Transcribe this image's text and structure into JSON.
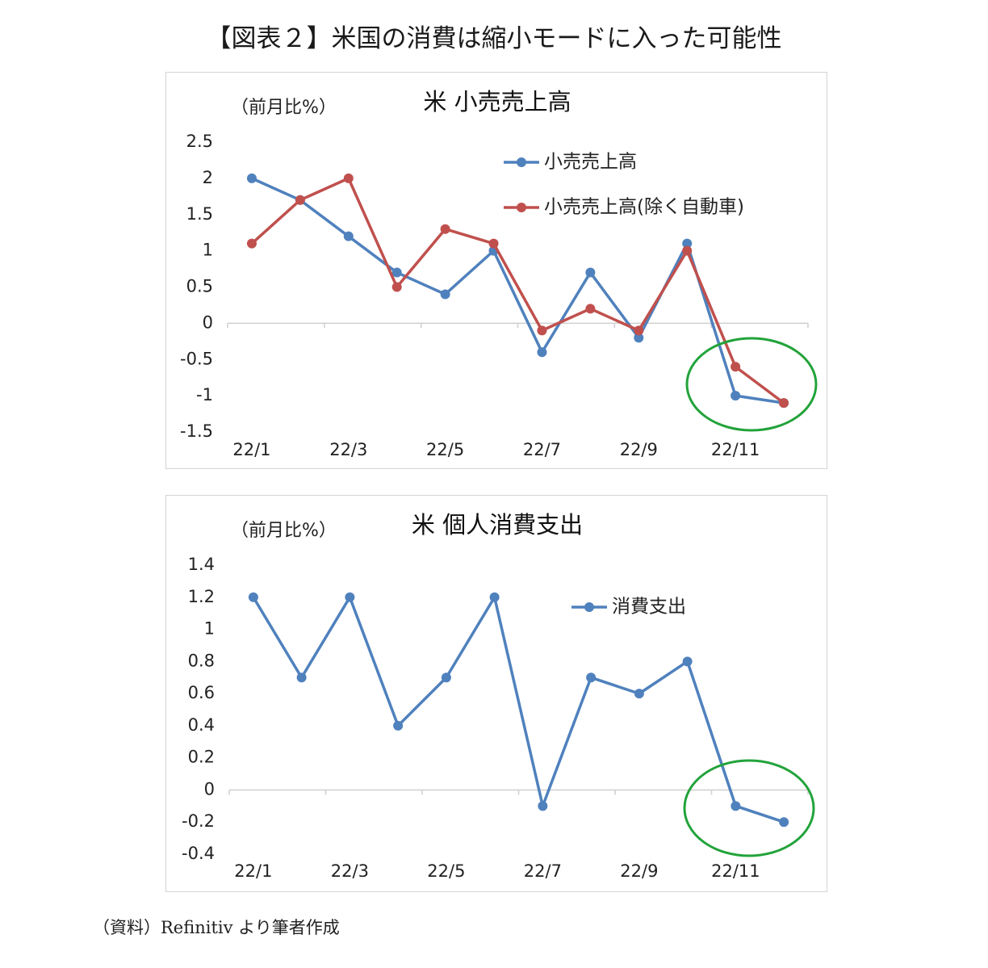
{
  "figure_title": "【図表２】米国の消費は縮小モードに入った可能性",
  "source": "（資料）Refinitiv より筆者作成",
  "chart_data": [
    {
      "type": "line",
      "title": "米 小売売上高",
      "ylabel": "（前月比%）",
      "xlabel": "",
      "categories": [
        "22/1",
        "22/2",
        "22/3",
        "22/4",
        "22/5",
        "22/6",
        "22/7",
        "22/8",
        "22/9",
        "22/10",
        "22/11",
        "22/12"
      ],
      "x_tick_labels": [
        "22/1",
        "22/3",
        "22/5",
        "22/7",
        "22/9",
        "22/11"
      ],
      "y_tick_labels": [
        "2.5",
        "2",
        "1.5",
        "1",
        "0.5",
        "0",
        "-0.5",
        "-1",
        "-1.5"
      ],
      "ylim": [
        -1.5,
        2.5
      ],
      "grid": false,
      "legend_position": "top-right",
      "series": [
        {
          "name": "小売売上高",
          "color": "#4f81bd",
          "values": [
            2.0,
            1.7,
            1.2,
            0.7,
            0.4,
            1.0,
            -0.4,
            0.7,
            -0.2,
            1.1,
            -1.0,
            -1.1
          ]
        },
        {
          "name": "小売売上高(除く自動車)",
          "color": "#c0504d",
          "values": [
            1.1,
            1.7,
            2.0,
            0.5,
            1.3,
            1.1,
            -0.1,
            0.2,
            -0.1,
            1.0,
            -0.6,
            -1.1
          ]
        }
      ],
      "annotation": {
        "shape": "ellipse",
        "color": "#22a33a",
        "x_range": [
          "22/11",
          "22/12"
        ]
      }
    },
    {
      "type": "line",
      "title": "米 個人消費支出",
      "ylabel": "（前月比%）",
      "xlabel": "",
      "categories": [
        "22/1",
        "22/2",
        "22/3",
        "22/4",
        "22/5",
        "22/6",
        "22/7",
        "22/8",
        "22/9",
        "22/10",
        "22/11",
        "22/12"
      ],
      "x_tick_labels": [
        "22/1",
        "22/3",
        "22/5",
        "22/7",
        "22/9",
        "22/11"
      ],
      "y_tick_labels": [
        "1.4",
        "1.2",
        "1",
        "0.8",
        "0.6",
        "0.4",
        "0.2",
        "0",
        "-0.2",
        "-0.4"
      ],
      "ylim": [
        -0.4,
        1.4
      ],
      "grid": false,
      "legend_position": "top-right",
      "series": [
        {
          "name": "消費支出",
          "color": "#4f81bd",
          "values": [
            1.2,
            0.7,
            1.2,
            0.4,
            0.7,
            1.2,
            -0.1,
            0.7,
            0.6,
            0.8,
            -0.1,
            -0.2
          ]
        }
      ],
      "annotation": {
        "shape": "ellipse",
        "color": "#22a33a",
        "x_range": [
          "22/11",
          "22/12"
        ]
      }
    }
  ]
}
